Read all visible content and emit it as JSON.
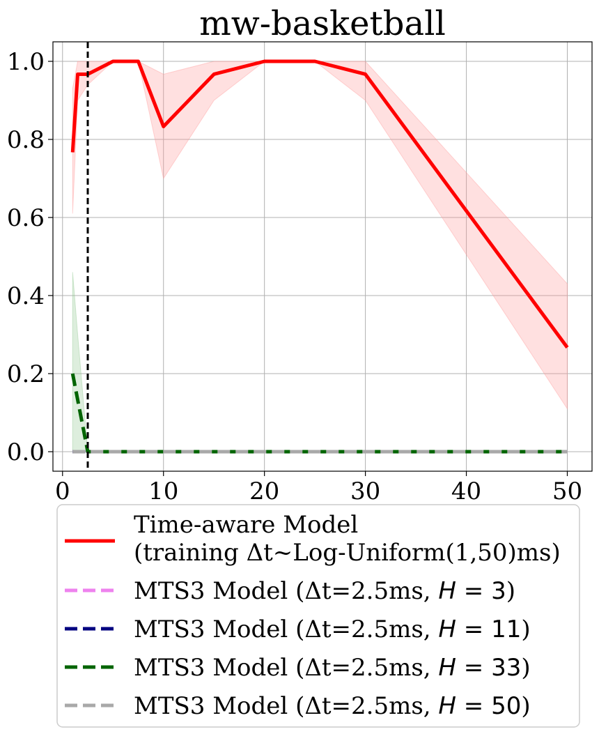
{
  "chart_data": {
    "type": "line",
    "title": "mw-basketball",
    "xlabel": "",
    "ylabel": "",
    "xlim": [
      -0.95,
      52.45
    ],
    "ylim": [
      -0.05,
      1.05
    ],
    "xticks": [
      0,
      10,
      20,
      30,
      40,
      50
    ],
    "yticks": [
      0.0,
      0.2,
      0.4,
      0.6,
      0.8,
      1.0
    ],
    "xtick_labels": [
      "0",
      "10",
      "20",
      "30",
      "40",
      "50"
    ],
    "ytick_labels": [
      "0.0",
      "0.2",
      "0.4",
      "0.6",
      "0.8",
      "1.0"
    ],
    "grid": true,
    "vline": {
      "x": 2.5,
      "style": "dashed",
      "color": "#000000"
    },
    "x": [
      1,
      1.5,
      2.5,
      5,
      7.5,
      10,
      15,
      20,
      25,
      30,
      50
    ],
    "series": [
      {
        "name_main": "Time-aware Model",
        "name_sub": "(training Δt~Log-Uniform(1,50)ms)",
        "color": "#ff0000",
        "style": "solid",
        "values": [
          0.767,
          0.967,
          0.967,
          1.0,
          1.0,
          0.833,
          0.967,
          1.0,
          1.0,
          0.967,
          0.267
        ],
        "band_low": [
          0.61,
          0.9,
          0.94,
          1.0,
          1.0,
          0.7,
          0.9,
          1.0,
          1.0,
          0.9,
          0.11
        ],
        "band_high": [
          0.93,
          1.0,
          1.0,
          1.0,
          1.0,
          0.967,
          1.0,
          1.0,
          1.0,
          1.0,
          0.43
        ],
        "band_color": "#ff9999"
      },
      {
        "name_prefix": "MTS3 Model (Δt=2.5ms, ",
        "name_var": "H",
        "name_eq": " = ",
        "name_num": "3",
        "name_suffix": ")",
        "color": "#ee82ee",
        "style": "dashed",
        "values": [
          0,
          0,
          0,
          0,
          0,
          0,
          0,
          0,
          0,
          0,
          0
        ]
      },
      {
        "name_prefix": "MTS3 Model (Δt=2.5ms, ",
        "name_var": "H",
        "name_eq": " = ",
        "name_num": "11",
        "name_suffix": ")",
        "color": "#000080",
        "style": "dashed",
        "values": [
          0,
          0,
          0,
          0,
          0,
          0,
          0,
          0,
          0,
          0,
          0
        ]
      },
      {
        "name_prefix": "MTS3 Model (Δt=2.5ms, ",
        "name_var": "H",
        "name_eq": " = ",
        "name_num": "33",
        "name_suffix": ")",
        "color": "#006400",
        "style": "dashed",
        "values": [
          0.2,
          0.133,
          0,
          0,
          0,
          0,
          0,
          0,
          0,
          0,
          0
        ],
        "band_low": [
          0,
          0,
          0,
          0,
          0,
          0,
          0,
          0,
          0,
          0,
          0
        ],
        "band_high": [
          0.46,
          0.3,
          0,
          0,
          0,
          0,
          0,
          0,
          0,
          0,
          0
        ],
        "band_color": "#90c890"
      },
      {
        "name_prefix": "MTS3 Model (Δt=2.5ms, ",
        "name_var": "H",
        "name_eq": " = ",
        "name_num": "50",
        "name_suffix": ")",
        "color": "#a9a9a9",
        "style": "dashed",
        "values": [
          0,
          0,
          0,
          0,
          0,
          0,
          0,
          0,
          0,
          0,
          0
        ]
      }
    ],
    "legend_placement": "below"
  }
}
